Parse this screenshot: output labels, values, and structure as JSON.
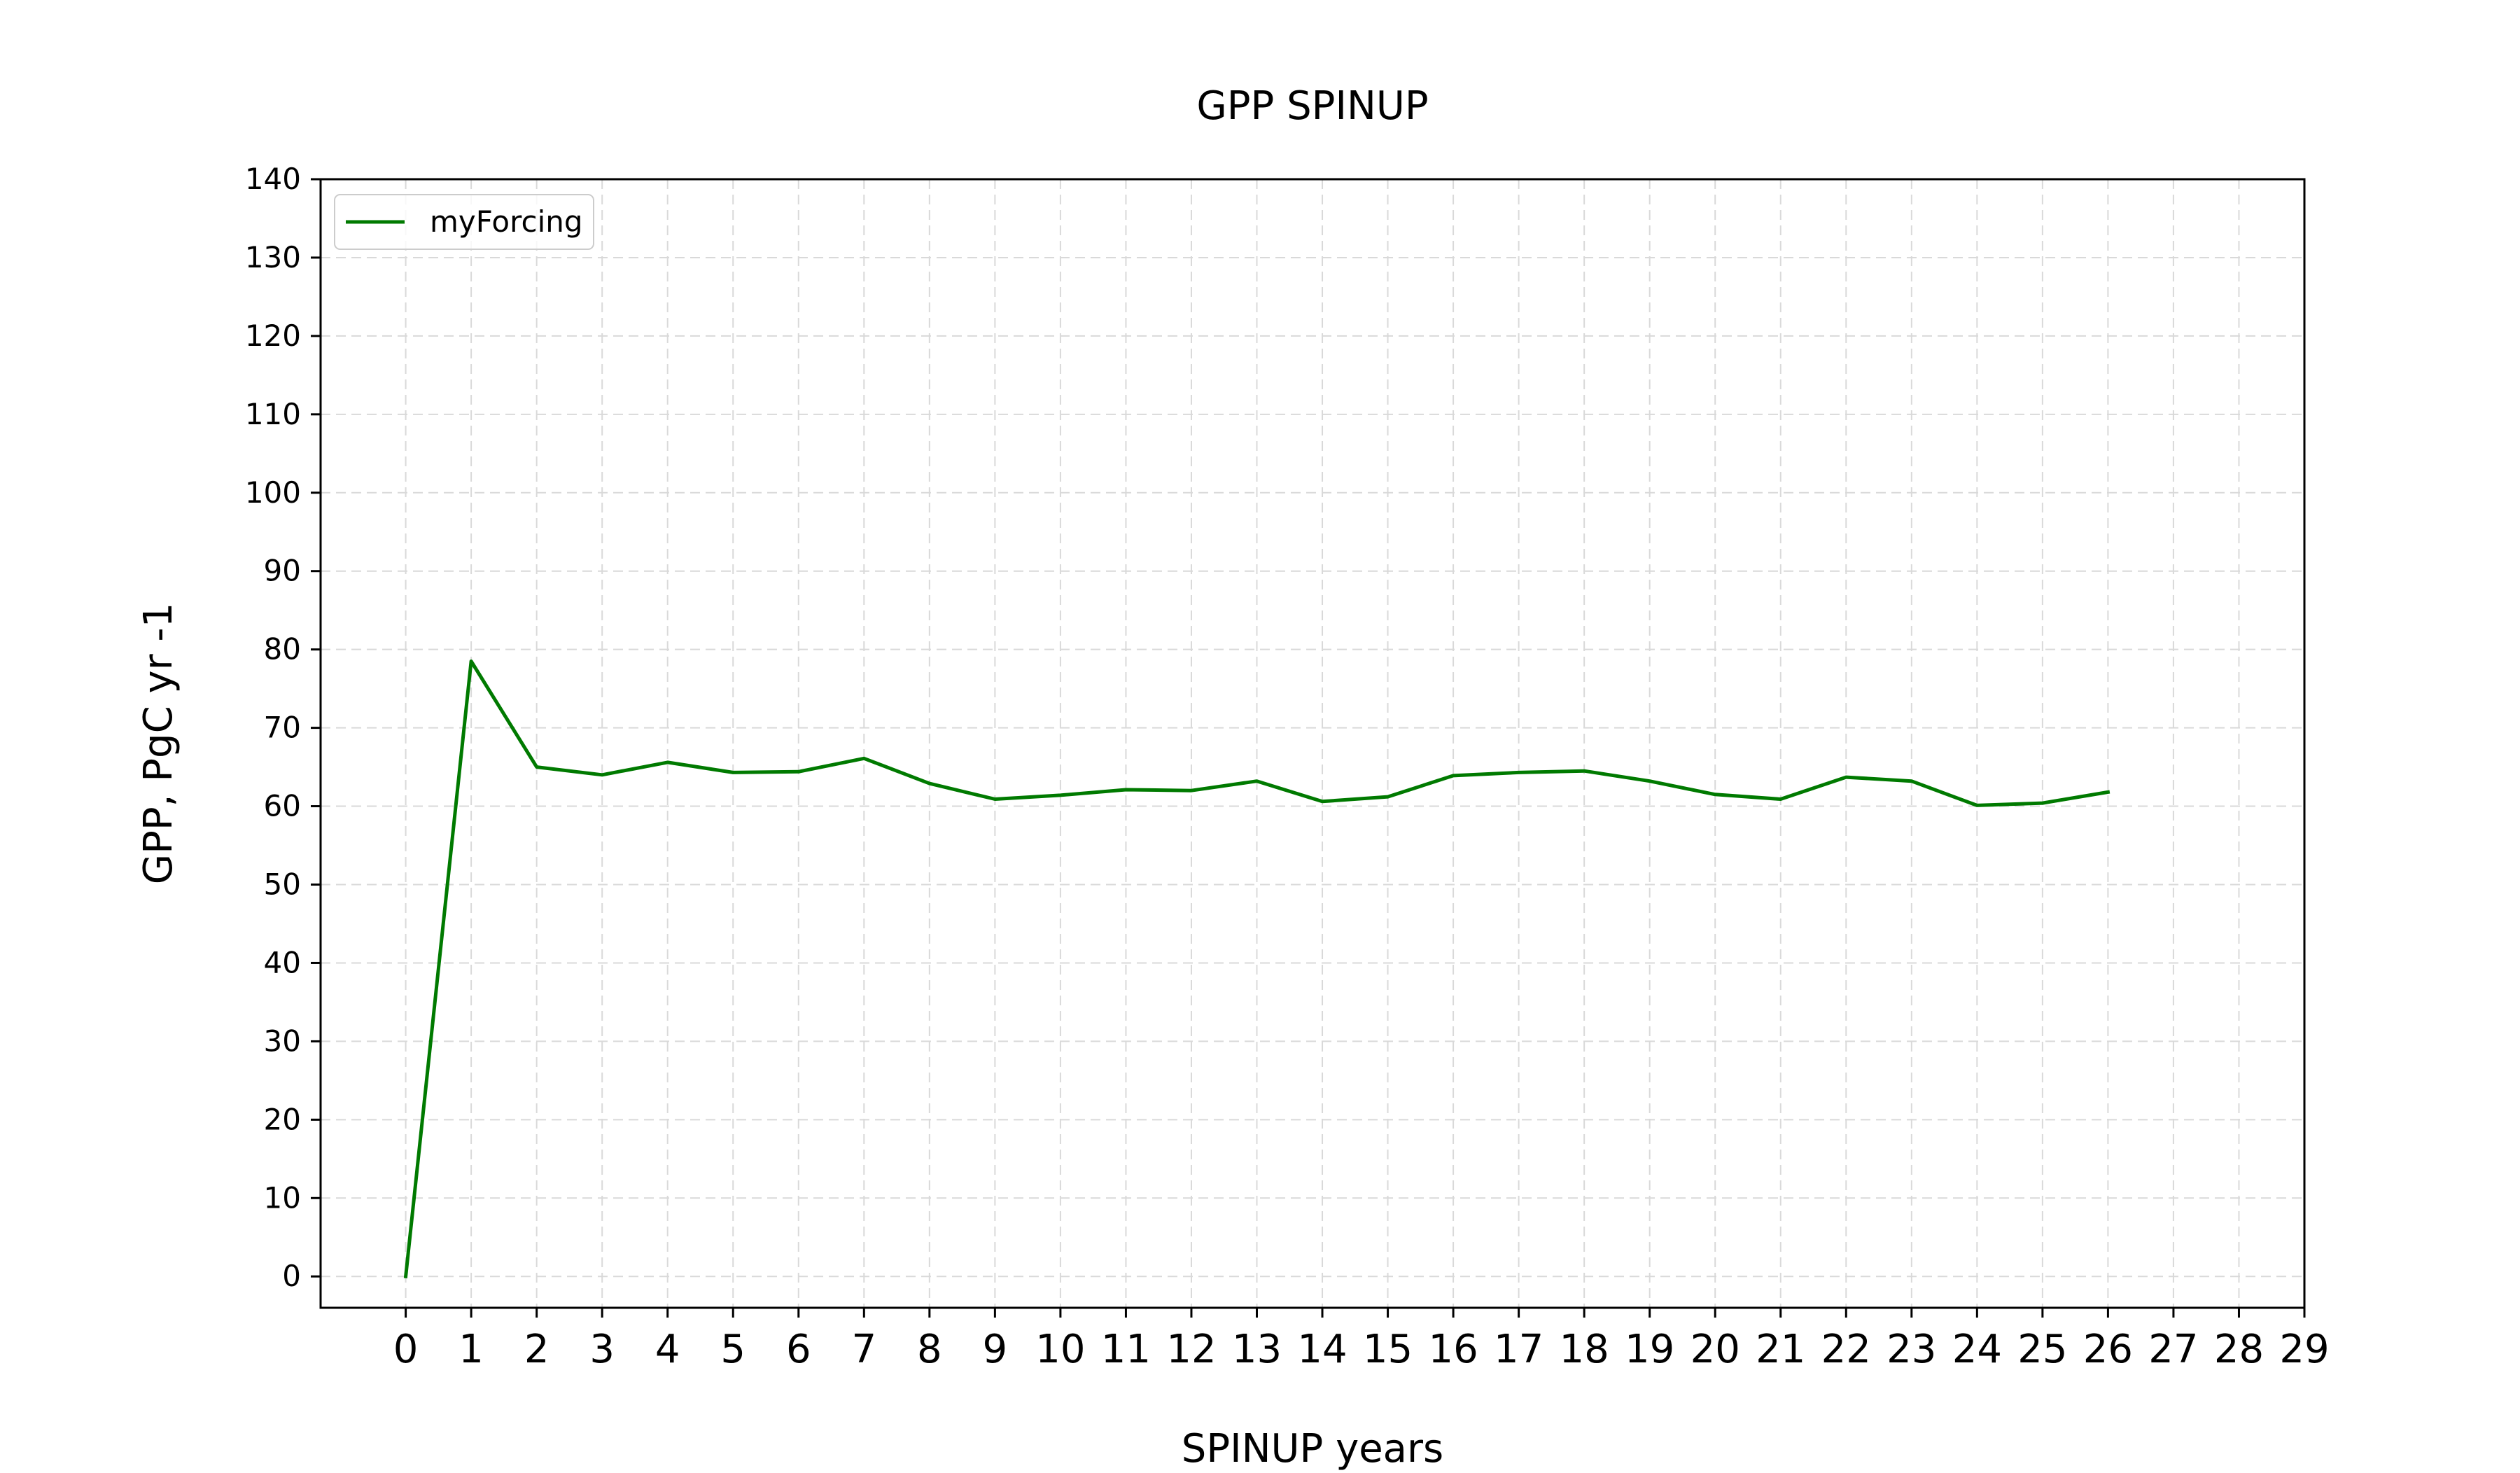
{
  "chart_data": {
    "type": "line",
    "title": "GPP SPINUP",
    "xlabel": "SPINUP years",
    "ylabel": "GPP, PgC yr -1",
    "xlim": [
      -1.3,
      29
    ],
    "ylim": [
      -4,
      140
    ],
    "x_ticks": [
      0,
      1,
      2,
      3,
      4,
      5,
      6,
      7,
      8,
      9,
      10,
      11,
      12,
      13,
      14,
      15,
      16,
      17,
      18,
      19,
      20,
      21,
      22,
      23,
      24,
      25,
      26,
      27,
      28,
      29
    ],
    "y_ticks": [
      0,
      10,
      20,
      30,
      40,
      50,
      60,
      70,
      80,
      90,
      100,
      110,
      120,
      130,
      140
    ],
    "grid": true,
    "grid_style": "dashed",
    "legend_position": "top-left",
    "series": [
      {
        "name": "myForcing",
        "color": "#007a00",
        "x": [
          0,
          1,
          2,
          3,
          4,
          5,
          6,
          7,
          8,
          9,
          10,
          11,
          12,
          13,
          14,
          15,
          16,
          17,
          18,
          19,
          20,
          21,
          22,
          23,
          24,
          25,
          26
        ],
        "y": [
          0,
          78.5,
          65.0,
          64.0,
          65.6,
          64.3,
          64.4,
          66.1,
          62.9,
          60.9,
          61.4,
          62.1,
          62.0,
          63.2,
          60.6,
          61.2,
          63.9,
          64.3,
          64.5,
          63.2,
          61.5,
          60.9,
          63.7,
          63.2,
          60.1,
          60.4,
          61.8
        ]
      }
    ]
  }
}
